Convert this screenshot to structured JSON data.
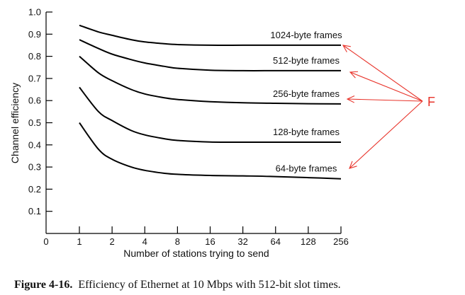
{
  "chart_data": {
    "type": "line",
    "xlabel": "Number of stations trying to send",
    "ylabel": "Channel efficiency",
    "x_scale": "log2",
    "x_zero_label": "0",
    "x_ticks": [
      1,
      2,
      4,
      8,
      16,
      32,
      64,
      128,
      256
    ],
    "x_tick_labels": [
      "1",
      "2",
      "4",
      "8",
      "16",
      "32",
      "64",
      "128",
      "256"
    ],
    "ylim": [
      0,
      1.0
    ],
    "y_ticks": [
      0.1,
      0.2,
      0.3,
      0.4,
      0.5,
      0.6,
      0.7,
      0.8,
      0.9,
      1.0
    ],
    "y_tick_labels": [
      "0.1",
      "0.2",
      "0.3",
      "0.4",
      "0.5",
      "0.6",
      "0.7",
      "0.8",
      "0.9",
      "1.0"
    ],
    "x": [
      1,
      1.5,
      2,
      3,
      4,
      6,
      8,
      16,
      32,
      64,
      128,
      256
    ],
    "series": [
      {
        "name": "1024-byte frames",
        "values": [
          0.94,
          0.91,
          0.895,
          0.875,
          0.865,
          0.857,
          0.853,
          0.85,
          0.85,
          0.85,
          0.85,
          0.85
        ]
      },
      {
        "name": "512-byte frames",
        "values": [
          0.875,
          0.835,
          0.81,
          0.785,
          0.77,
          0.755,
          0.746,
          0.737,
          0.735,
          0.735,
          0.735,
          0.735
        ]
      },
      {
        "name": "256-byte frames",
        "values": [
          0.8,
          0.725,
          0.69,
          0.65,
          0.63,
          0.613,
          0.605,
          0.595,
          0.59,
          0.588,
          0.586,
          0.585
        ]
      },
      {
        "name": "128-byte frames",
        "values": [
          0.66,
          0.55,
          0.51,
          0.465,
          0.445,
          0.428,
          0.42,
          0.413,
          0.412,
          0.412,
          0.412,
          0.412
        ]
      },
      {
        "name": "64-byte frames",
        "values": [
          0.5,
          0.38,
          0.335,
          0.3,
          0.285,
          0.272,
          0.267,
          0.262,
          0.26,
          0.257,
          0.252,
          0.247
        ]
      }
    ],
    "annotation": {
      "label": "F",
      "color": "#e8332a",
      "points_to": [
        "1024-byte frames",
        "512-byte frames",
        "256-byte frames",
        "64-byte frames"
      ]
    }
  },
  "caption": {
    "label": "Figure 4-16.",
    "text": "Efficiency of Ethernet at 10 Mbps with 512-bit slot times."
  }
}
